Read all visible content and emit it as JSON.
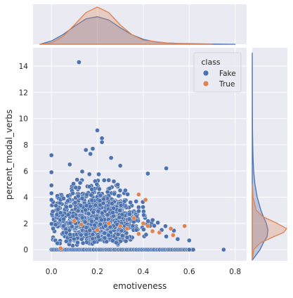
{
  "colors": {
    "panel_bg": "#eaeaf2",
    "grid": "#ffffff",
    "text": "#262626",
    "fake": "#4c72b0",
    "true": "#dd8452",
    "figure_bg": "#ffffff"
  },
  "chart_data": {
    "type": "scatter",
    "subtype": "jointplot",
    "xlabel": "emotiveness",
    "ylabel": "percent_modal_verbs",
    "xlim": [
      -0.08,
      0.85
    ],
    "ylim": [
      -0.85,
      15.4
    ],
    "xticks": [
      0.0,
      0.2,
      0.4,
      0.6,
      0.8
    ],
    "xtick_labels": [
      "0.0",
      "0.2",
      "0.4",
      "0.6",
      "0.8"
    ],
    "yticks": [
      0,
      2,
      4,
      6,
      8,
      10,
      12,
      14
    ],
    "ytick_labels": [
      "0",
      "2",
      "4",
      "6",
      "8",
      "10",
      "12",
      "14"
    ],
    "grid": true,
    "legend": {
      "title": "class",
      "placement": "top-right",
      "entries": [
        "Fake",
        "True"
      ]
    },
    "series": [
      {
        "name": "Fake",
        "color": "#4c72b0",
        "notable_points": [
          [
            0.12,
            14.3
          ],
          [
            0.2,
            9.1
          ],
          [
            0.22,
            8.5
          ],
          [
            0.22,
            8.2
          ],
          [
            0.0,
            7.2
          ],
          [
            0.18,
            7.7
          ],
          [
            0.15,
            7.6
          ],
          [
            0.17,
            7.3
          ],
          [
            0.26,
            7.0
          ],
          [
            0.08,
            6.5
          ],
          [
            0.3,
            6.4
          ],
          [
            0.5,
            6.2
          ],
          [
            0.42,
            5.8
          ],
          [
            0.0,
            5.9
          ],
          [
            0.0,
            4.9
          ],
          [
            0.0,
            4.3
          ],
          [
            0.0,
            3.8
          ],
          [
            0.75,
            0.0
          ],
          [
            0.6,
            0.7
          ],
          [
            0.6,
            0.0
          ],
          [
            0.55,
            0.8
          ],
          [
            0.5,
            1.0
          ],
          [
            0.48,
            1.5
          ]
        ],
        "cluster": {
          "x_center": 0.2,
          "x_spread": 0.085,
          "y_center": 1.6,
          "y_spread": 1.15,
          "count": 1500
        },
        "baseline_row_y": 0,
        "marginal_x": {
          "x": [
            -0.05,
            0.0,
            0.05,
            0.1,
            0.15,
            0.2,
            0.25,
            0.3,
            0.35,
            0.4,
            0.45,
            0.5,
            0.55,
            0.6,
            0.7,
            0.8
          ],
          "density": [
            0.0,
            0.12,
            0.35,
            0.65,
            0.92,
            1.0,
            0.88,
            0.6,
            0.35,
            0.18,
            0.09,
            0.05,
            0.03,
            0.02,
            0.01,
            0.0
          ]
        },
        "marginal_y": {
          "y": [
            -0.8,
            0.0,
            0.5,
            1.0,
            1.5,
            2.0,
            2.5,
            3.0,
            4.0,
            5.0,
            6.0,
            7.0,
            8.0,
            9.0,
            11.0,
            14.0,
            15.0
          ],
          "density": [
            0.0,
            0.5,
            0.7,
            0.95,
            1.0,
            0.9,
            0.72,
            0.55,
            0.32,
            0.17,
            0.09,
            0.05,
            0.03,
            0.02,
            0.01,
            0.005,
            0.0
          ]
        }
      },
      {
        "name": "True",
        "color": "#dd8452",
        "notable_points": [
          [
            0.04,
            0.1
          ],
          [
            0.1,
            2.2
          ],
          [
            0.13,
            1.9
          ],
          [
            0.2,
            1.5
          ],
          [
            0.25,
            2.0
          ],
          [
            0.3,
            1.8
          ],
          [
            0.33,
            1.6
          ],
          [
            0.36,
            2.4
          ],
          [
            0.38,
            1.2
          ],
          [
            0.4,
            2.0
          ],
          [
            0.42,
            1.8
          ],
          [
            0.44,
            1.4
          ],
          [
            0.47,
            1.3
          ],
          [
            0.52,
            1.6
          ],
          [
            0.53,
            1.1
          ],
          [
            0.58,
            1.8
          ],
          [
            0.41,
            3.8
          ],
          [
            0.38,
            4.2
          ]
        ],
        "marginal_x": {
          "x": [
            -0.05,
            0.0,
            0.05,
            0.1,
            0.15,
            0.2,
            0.25,
            0.3,
            0.35,
            0.4,
            0.5,
            0.6,
            0.7
          ],
          "density": [
            0.0,
            0.05,
            0.28,
            0.7,
            1.15,
            1.35,
            1.15,
            0.7,
            0.35,
            0.15,
            0.05,
            0.01,
            0.0
          ]
        },
        "marginal_y": {
          "y": [
            -0.8,
            0.0,
            0.5,
            1.0,
            1.3,
            1.6,
            2.0,
            2.5,
            3.0,
            4.0,
            5.0
          ],
          "density": [
            0.0,
            0.1,
            0.5,
            1.4,
            2.0,
            2.2,
            1.6,
            0.7,
            0.25,
            0.05,
            0.0
          ]
        }
      }
    ]
  }
}
